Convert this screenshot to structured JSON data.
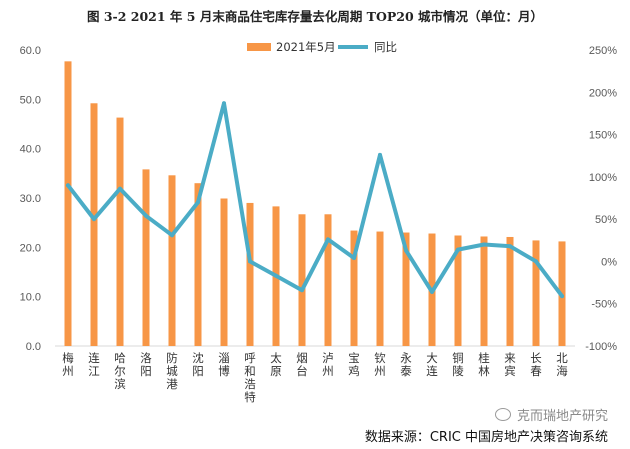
{
  "title": "图 3-2 2021 年 5 月末商品住宅库存量去化周期 TOP20 城市情况（单位：月）",
  "source": "数据来源：CRIC 中国房地产决策咨询系统",
  "watermark": "克而瑞地产研究",
  "colors": {
    "bar": "#F79646",
    "line": "#4BACC6"
  },
  "chart_data": {
    "type": "bar",
    "categories": [
      "梅州",
      "连江",
      "哈尔滨",
      "洛阳",
      "防城港",
      "沈阳",
      "淄博",
      "呼和浩特",
      "太原",
      "烟台",
      "泸州",
      "宝鸡",
      "钦州",
      "永泰",
      "大连",
      "铜陵",
      "桂林",
      "来宾",
      "长春",
      "北海"
    ],
    "series": [
      {
        "name": "2021年5月",
        "type": "bar",
        "axis": "left",
        "values": [
          57.7,
          49.2,
          46.3,
          35.8,
          34.6,
          33.0,
          29.9,
          29.0,
          28.3,
          26.7,
          26.7,
          23.4,
          23.2,
          23.0,
          22.8,
          22.4,
          22.2,
          22.1,
          21.4,
          21.2
        ]
      },
      {
        "name": "同比",
        "type": "line",
        "axis": "right",
        "unit": "%",
        "values": [
          90,
          50,
          86,
          54,
          31,
          70,
          187,
          0,
          -17,
          -34,
          26,
          4,
          126,
          13,
          -36,
          14,
          20,
          18,
          0,
          -41
        ]
      }
    ],
    "y_left": {
      "min": 0,
      "max": 60,
      "step": 10,
      "tick_labels": [
        "0.0",
        "10.0",
        "20.0",
        "30.0",
        "40.0",
        "50.0",
        "60.0"
      ]
    },
    "y_right": {
      "min": -100,
      "max": 250,
      "step": 50,
      "tick_labels": [
        "-100%",
        "-50%",
        "0%",
        "50%",
        "100%",
        "150%",
        "200%",
        "250%"
      ]
    },
    "legend": {
      "position": "top",
      "entries": [
        "2021年5月",
        "同比"
      ]
    },
    "grid": false
  }
}
